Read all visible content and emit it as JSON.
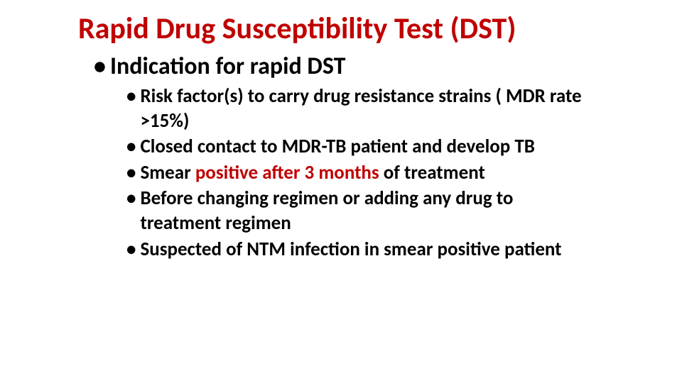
{
  "colors": {
    "title": "#c00000",
    "body": "#000000",
    "highlight": "#c00000",
    "background": "#ffffff"
  },
  "typography": {
    "title_fontsize": 42,
    "lvl1_fontsize": 34,
    "lvl2_fontsize": 27,
    "font_family": "Calibri",
    "font_weight": 700
  },
  "title": "Rapid Drug Susceptibility Test (DST)",
  "lvl1": {
    "bullet": "•",
    "text": "Indication for rapid DST"
  },
  "lvl2": {
    "bullet": "•",
    "items": [
      {
        "segments": [
          {
            "text": "Risk factor(s) to carry drug resistance strains ( MDR rate >15%)",
            "hl": false
          }
        ]
      },
      {
        "segments": [
          {
            "text": "Closed contact to MDR-TB patient and develop TB",
            "hl": false
          }
        ]
      },
      {
        "segments": [
          {
            "text": "Smear ",
            "hl": false
          },
          {
            "text": "positive after 3 months ",
            "hl": true
          },
          {
            "text": "of treatment",
            "hl": false
          }
        ]
      },
      {
        "segments": [
          {
            "text": "Before changing regimen or adding any drug to treatment regimen",
            "hl": false
          }
        ]
      },
      {
        "segments": [
          {
            "text": "Suspected of NTM infection in smear positive patient",
            "hl": false
          }
        ]
      }
    ]
  }
}
